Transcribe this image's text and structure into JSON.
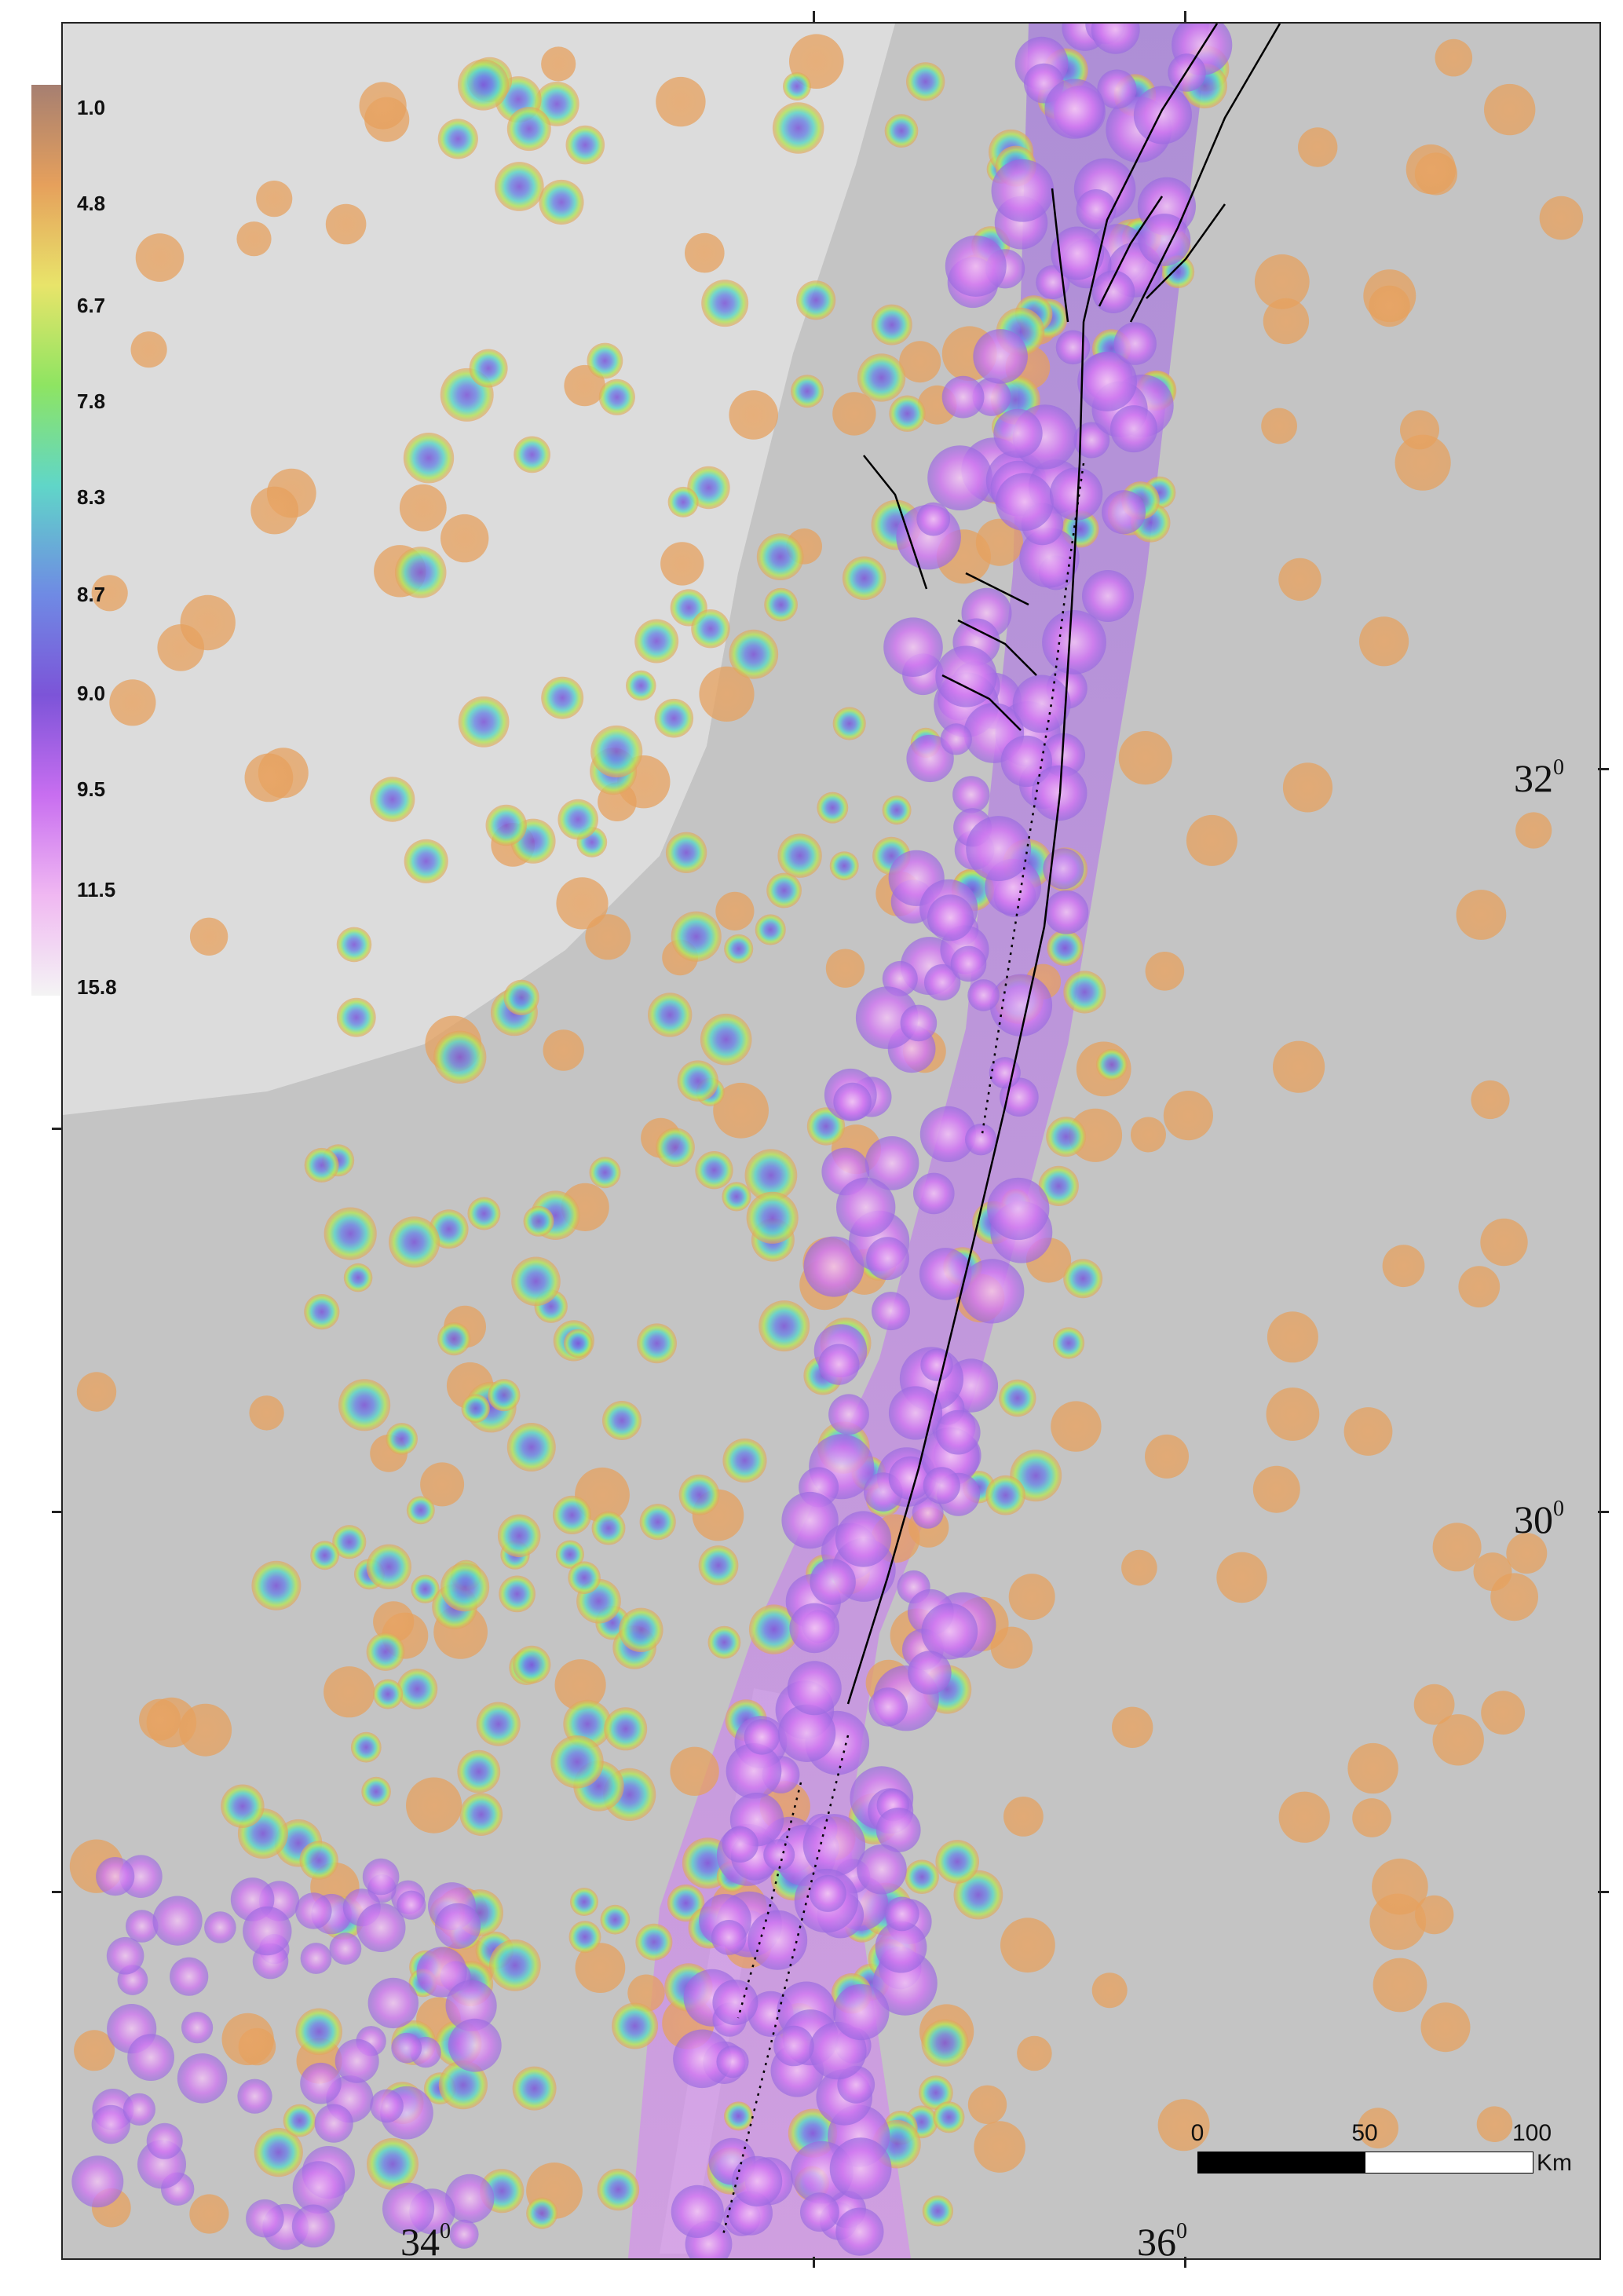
{
  "legend": {
    "labels": [
      "1.0",
      "4.8",
      "6.7",
      "7.8",
      "8.3",
      "8.7",
      "9.0",
      "9.5",
      "11.5",
      "15.8"
    ],
    "colors": [
      "#a67f71",
      "#e6a05c",
      "#e8e46a",
      "#8ee462",
      "#60d6c8",
      "#6f8ae4",
      "#7c54d8",
      "#c86ef0",
      "#f0b8f2",
      "#f4f4f4"
    ]
  },
  "latitude_labels": [
    {
      "deg": "32",
      "sup": "0"
    },
    {
      "deg": "30",
      "sup": "0"
    }
  ],
  "longitude_labels": [
    {
      "deg": "34",
      "sup": "0"
    },
    {
      "deg": "36",
      "sup": "0"
    }
  ],
  "scale_bar": {
    "ticks": [
      "0",
      "50",
      "100"
    ],
    "unit": "Km"
  },
  "colors": {
    "sea": "#dcdcdc",
    "land": "#c4c4c4",
    "fault": "#000000"
  }
}
